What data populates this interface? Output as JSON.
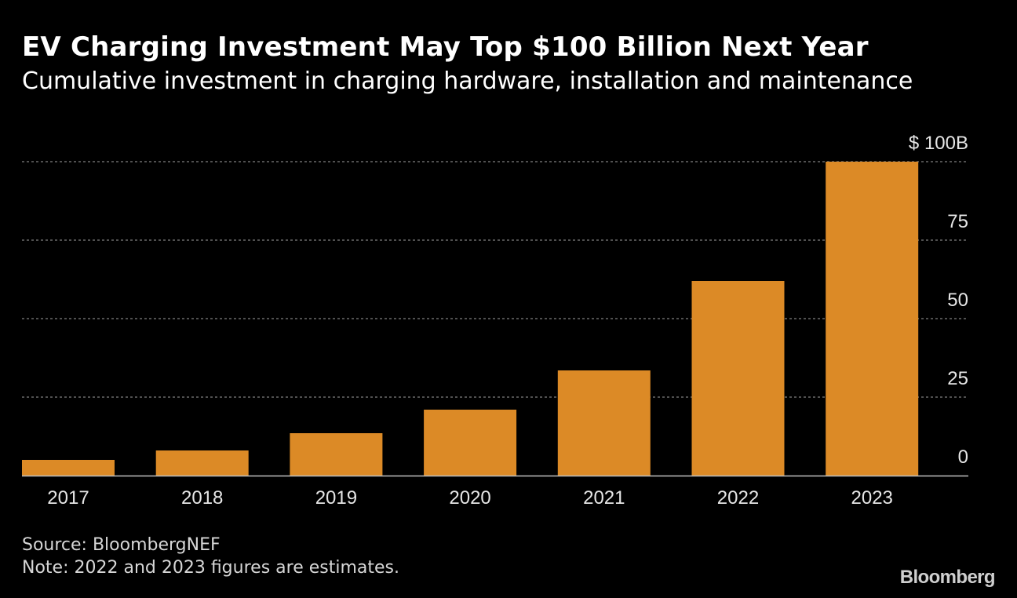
{
  "header": {
    "title": "EV Charging Investment May Top $100 Billion Next Year",
    "subtitle": "Cumulative investment in charging hardware, installation and maintenance"
  },
  "footer": {
    "source": "Source: BloombergNEF",
    "note": "Note: 2022 and 2023 figures are estimates.",
    "logo": "Bloomberg"
  },
  "colors": {
    "bar": "#dc8a26",
    "grid": "#808080",
    "axis": "#bfbfbf"
  },
  "chart_data": {
    "type": "bar",
    "title": "EV Charging Investment May Top $100 Billion Next Year",
    "subtitle": "Cumulative investment in charging hardware, installation and maintenance",
    "categories": [
      "2017",
      "2018",
      "2019",
      "2020",
      "2021",
      "2022",
      "2023"
    ],
    "values": [
      5,
      8,
      13.5,
      21,
      33.5,
      62,
      100
    ],
    "ylim": [
      0,
      100
    ],
    "yticks": [
      0,
      25,
      50,
      75,
      100
    ],
    "ytick_labels": [
      "0",
      "25",
      "50",
      "75",
      "$ 100B"
    ],
    "xlabel": "",
    "ylabel": "",
    "grid": true,
    "yaxis_side": "right",
    "legend": "none"
  }
}
